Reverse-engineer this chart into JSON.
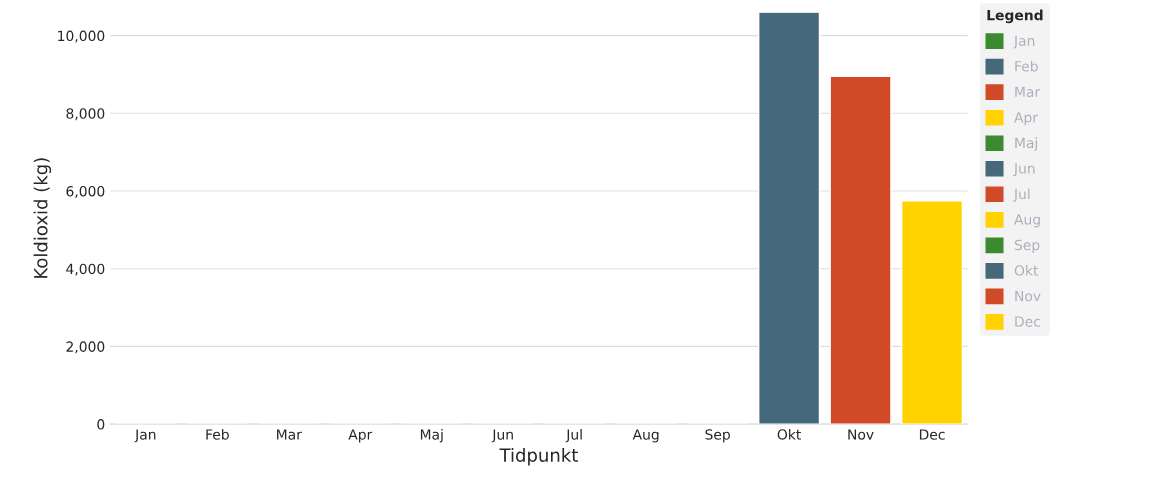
{
  "chart_data": {
    "type": "bar",
    "xlabel": "Tidpunkt",
    "ylabel": "Koldioxid (kg)",
    "legend_title": "Legend",
    "stacked": true,
    "categories": [
      "Jan",
      "Feb",
      "Mar",
      "Apr",
      "Maj",
      "Jun",
      "Jul",
      "Aug",
      "Sep",
      "Okt",
      "Nov",
      "Dec"
    ],
    "series": [
      {
        "name": "Jan",
        "color": "#3b8a30",
        "values": [
          0,
          null,
          null,
          null,
          null,
          null,
          null,
          null,
          null,
          null,
          null,
          null
        ]
      },
      {
        "name": "Feb",
        "color": "#45687a",
        "values": [
          null,
          0,
          null,
          null,
          null,
          null,
          null,
          null,
          null,
          null,
          null,
          null
        ]
      },
      {
        "name": "Mar",
        "color": "#d04a28",
        "values": [
          null,
          null,
          0,
          null,
          null,
          null,
          null,
          null,
          null,
          null,
          null,
          null
        ]
      },
      {
        "name": "Apr",
        "color": "#ffd200",
        "values": [
          null,
          null,
          null,
          0,
          null,
          null,
          null,
          null,
          null,
          null,
          null,
          null
        ]
      },
      {
        "name": "Maj",
        "color": "#3b8a30",
        "values": [
          null,
          null,
          null,
          null,
          0,
          null,
          null,
          null,
          null,
          null,
          null,
          null
        ]
      },
      {
        "name": "Jun",
        "color": "#45687a",
        "values": [
          null,
          null,
          null,
          null,
          null,
          0,
          null,
          null,
          null,
          null,
          null,
          null
        ]
      },
      {
        "name": "Jul",
        "color": "#d04a28",
        "values": [
          null,
          null,
          null,
          null,
          null,
          null,
          0,
          null,
          null,
          null,
          null,
          null
        ]
      },
      {
        "name": "Aug",
        "color": "#ffd200",
        "values": [
          null,
          null,
          null,
          null,
          null,
          null,
          null,
          0,
          null,
          null,
          null,
          null
        ]
      },
      {
        "name": "Sep",
        "color": "#3b8a30",
        "values": [
          null,
          null,
          null,
          null,
          null,
          null,
          null,
          null,
          0,
          null,
          null,
          null
        ]
      },
      {
        "name": "Okt",
        "color": "#45687a",
        "values": [
          null,
          null,
          null,
          null,
          null,
          null,
          null,
          null,
          null,
          10600,
          null,
          null
        ]
      },
      {
        "name": "Nov",
        "color": "#d04a28",
        "values": [
          null,
          null,
          null,
          null,
          null,
          null,
          null,
          null,
          null,
          null,
          8950,
          null
        ]
      },
      {
        "name": "Dec",
        "color": "#ffd200",
        "values": [
          null,
          null,
          null,
          null,
          null,
          null,
          null,
          null,
          null,
          null,
          null,
          5750
        ]
      }
    ],
    "ylim": [
      0,
      10600
    ],
    "yticks": [
      {
        "value": 0,
        "label": "0"
      },
      {
        "value": 2000,
        "label": "2,000"
      },
      {
        "value": 4000,
        "label": "4,000"
      },
      {
        "value": 6000,
        "label": "6,000"
      },
      {
        "value": 8000,
        "label": "8,000"
      },
      {
        "value": 10000,
        "label": "10,000"
      }
    ],
    "grid": "y",
    "legend": "right"
  }
}
